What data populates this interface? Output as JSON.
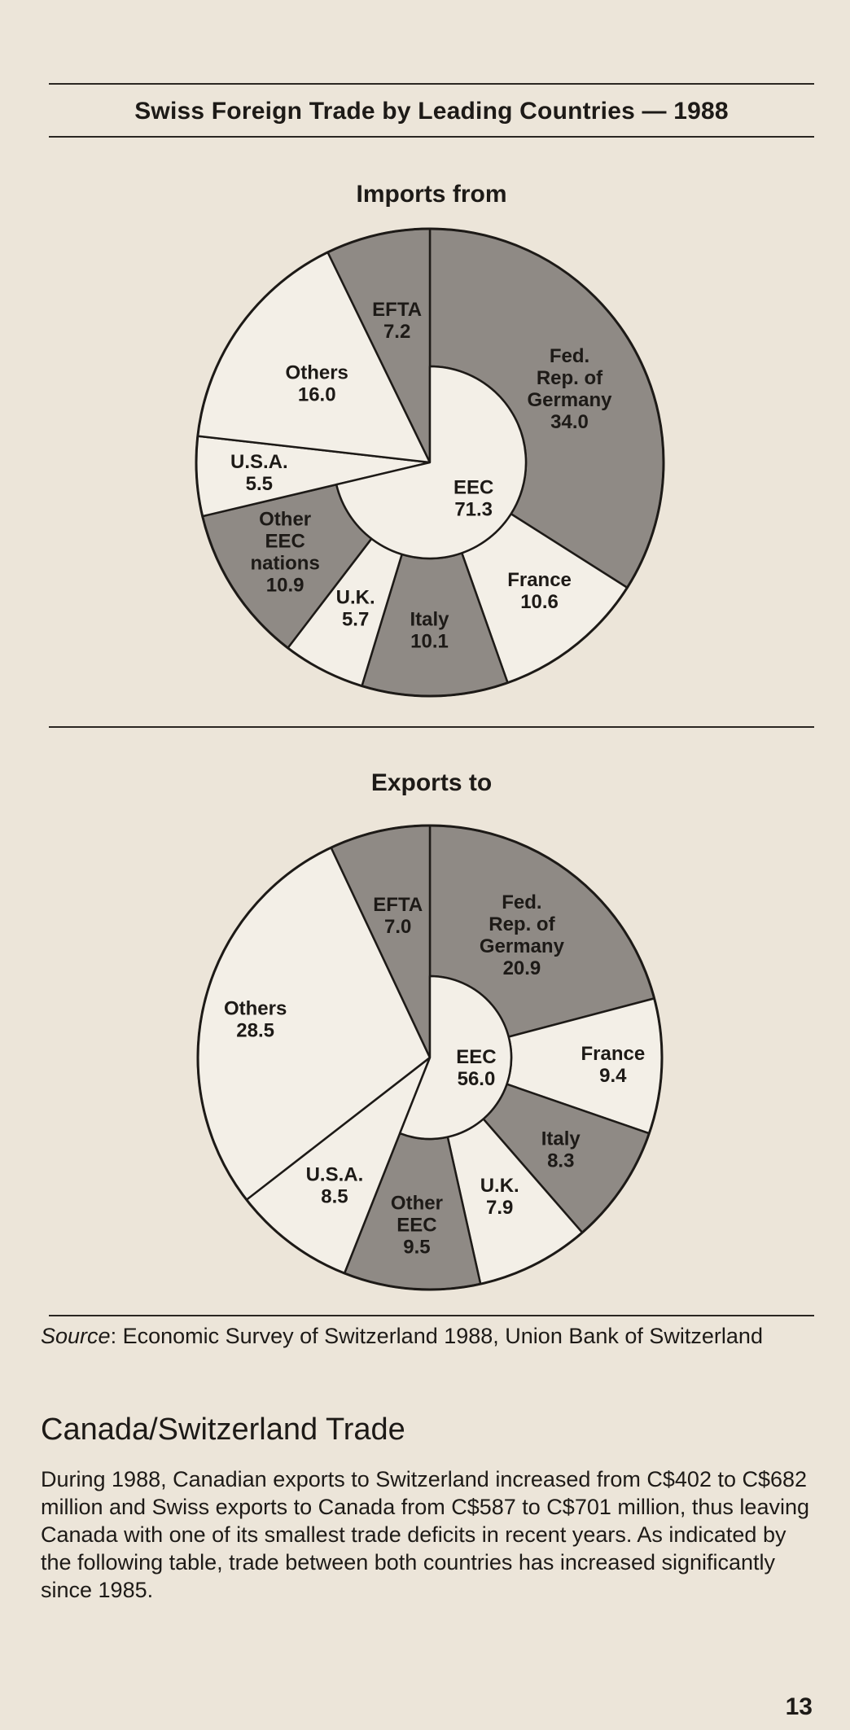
{
  "title": "Swiss Foreign Trade by Leading Countries — 1988",
  "colors": {
    "shaded": "#8f8a85",
    "light": "#f3efe7",
    "ink": "#1d1a17"
  },
  "chart_data": [
    {
      "type": "pie",
      "title": "Imports from",
      "inner_ring": {
        "label": "EEC",
        "value": 71.3
      },
      "slices": [
        {
          "label": "Fed. Rep. of Germany",
          "value": 34.0,
          "value_text": "34.0",
          "group": "EEC",
          "shaded": true
        },
        {
          "label": "France",
          "value": 10.6,
          "value_text": "10.6",
          "group": "EEC",
          "shaded": false
        },
        {
          "label": "Italy",
          "value": 10.1,
          "value_text": "10.1",
          "group": "EEC",
          "shaded": true
        },
        {
          "label": "U.K.",
          "value": 5.7,
          "value_text": "5.7",
          "group": "EEC",
          "shaded": false
        },
        {
          "label": "Other EEC nations",
          "value": 10.9,
          "value_text": "10.9",
          "group": "EEC",
          "shaded": true
        },
        {
          "label": "U.S.A.",
          "value": 5.5,
          "value_text": "5.5",
          "group": null,
          "shaded": false
        },
        {
          "label": "Others",
          "value": 16.0,
          "value_text": "16.0",
          "group": null,
          "shaded": false
        },
        {
          "label": "EFTA",
          "value": 7.2,
          "value_text": "7.2",
          "group": null,
          "shaded": true
        }
      ]
    },
    {
      "type": "pie",
      "title": "Exports to",
      "inner_ring": {
        "label": "EEC",
        "value": 56.0
      },
      "slices": [
        {
          "label": "Fed. Rep. of Germany",
          "value": 20.9,
          "value_text": "20.9",
          "group": "EEC",
          "shaded": true
        },
        {
          "label": "France",
          "value": 9.4,
          "value_text": "9.4",
          "group": "EEC",
          "shaded": false
        },
        {
          "label": "Italy",
          "value": 8.3,
          "value_text": "8.3",
          "group": "EEC",
          "shaded": true
        },
        {
          "label": "U.K.",
          "value": 7.9,
          "value_text": "7.9",
          "group": "EEC",
          "shaded": false
        },
        {
          "label": "Other EEC",
          "value": 9.5,
          "value_text": "9.5",
          "group": "EEC",
          "shaded": true
        },
        {
          "label": "U.S.A.",
          "value": 8.5,
          "value_text": "8.5",
          "group": null,
          "shaded": false
        },
        {
          "label": "Others",
          "value": 28.5,
          "value_text": "28.5",
          "group": null,
          "shaded": false
        },
        {
          "label": "EFTA",
          "value": 7.0,
          "value_text": "7.0",
          "group": null,
          "shaded": true
        }
      ]
    }
  ],
  "source": {
    "label": "Source",
    "text": ": Economic Survey of Switzerland 1988, Union Bank of Switzerland"
  },
  "section": {
    "heading": "Canada/Switzerland Trade",
    "body": "During 1988, Canadian exports to Switzerland increased from C$402 to C$682 million and Swiss exports to Canada from C$587 to C$701 million, thus leaving Canada with one of its smallest trade deficits in recent years. As indicated by the following table, trade between both countries has increased significantly since 1985."
  },
  "page_number": "13"
}
